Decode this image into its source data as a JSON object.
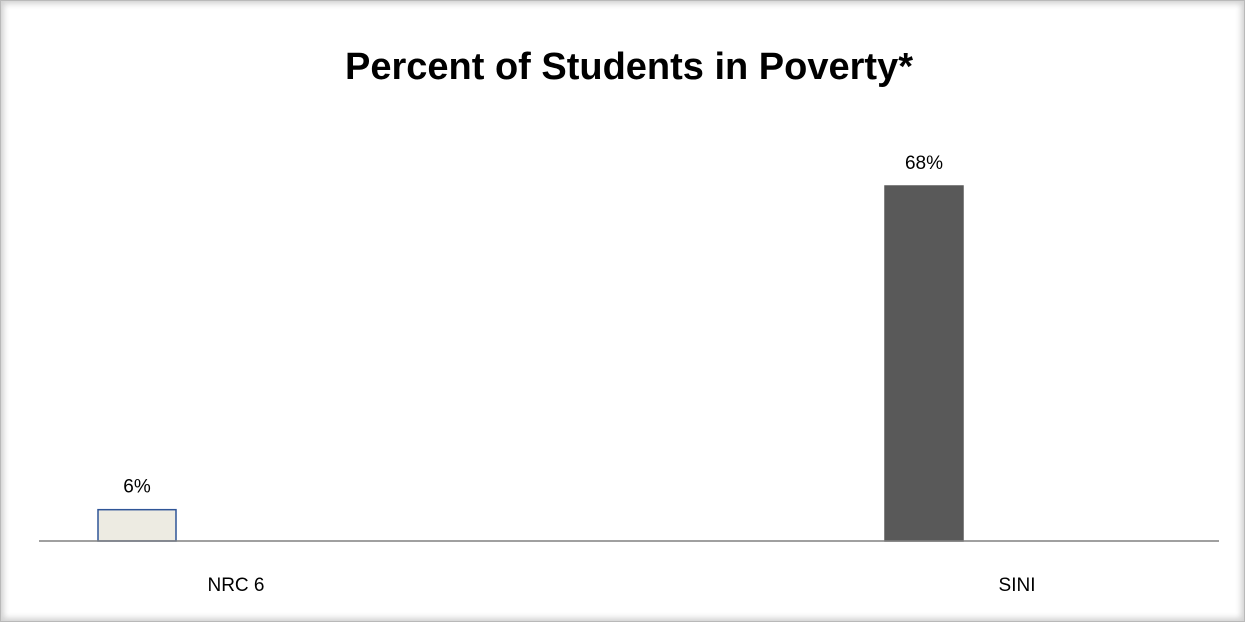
{
  "chart_data": {
    "type": "bar",
    "title": "Percent of Students in Poverty*",
    "categories": [
      "NRC 6",
      "SINI"
    ],
    "values": [
      6,
      68
    ],
    "data_labels": [
      "6%",
      "68%"
    ],
    "value_unit": "%",
    "ylim": [
      0,
      68
    ],
    "colors": [
      "#edebe2",
      "#595959"
    ],
    "outline_colors": [
      "#2f5597",
      "#595959"
    ],
    "axis_color": "#808080",
    "grid": false,
    "legend": "none",
    "xlabel": "",
    "ylabel": ""
  }
}
